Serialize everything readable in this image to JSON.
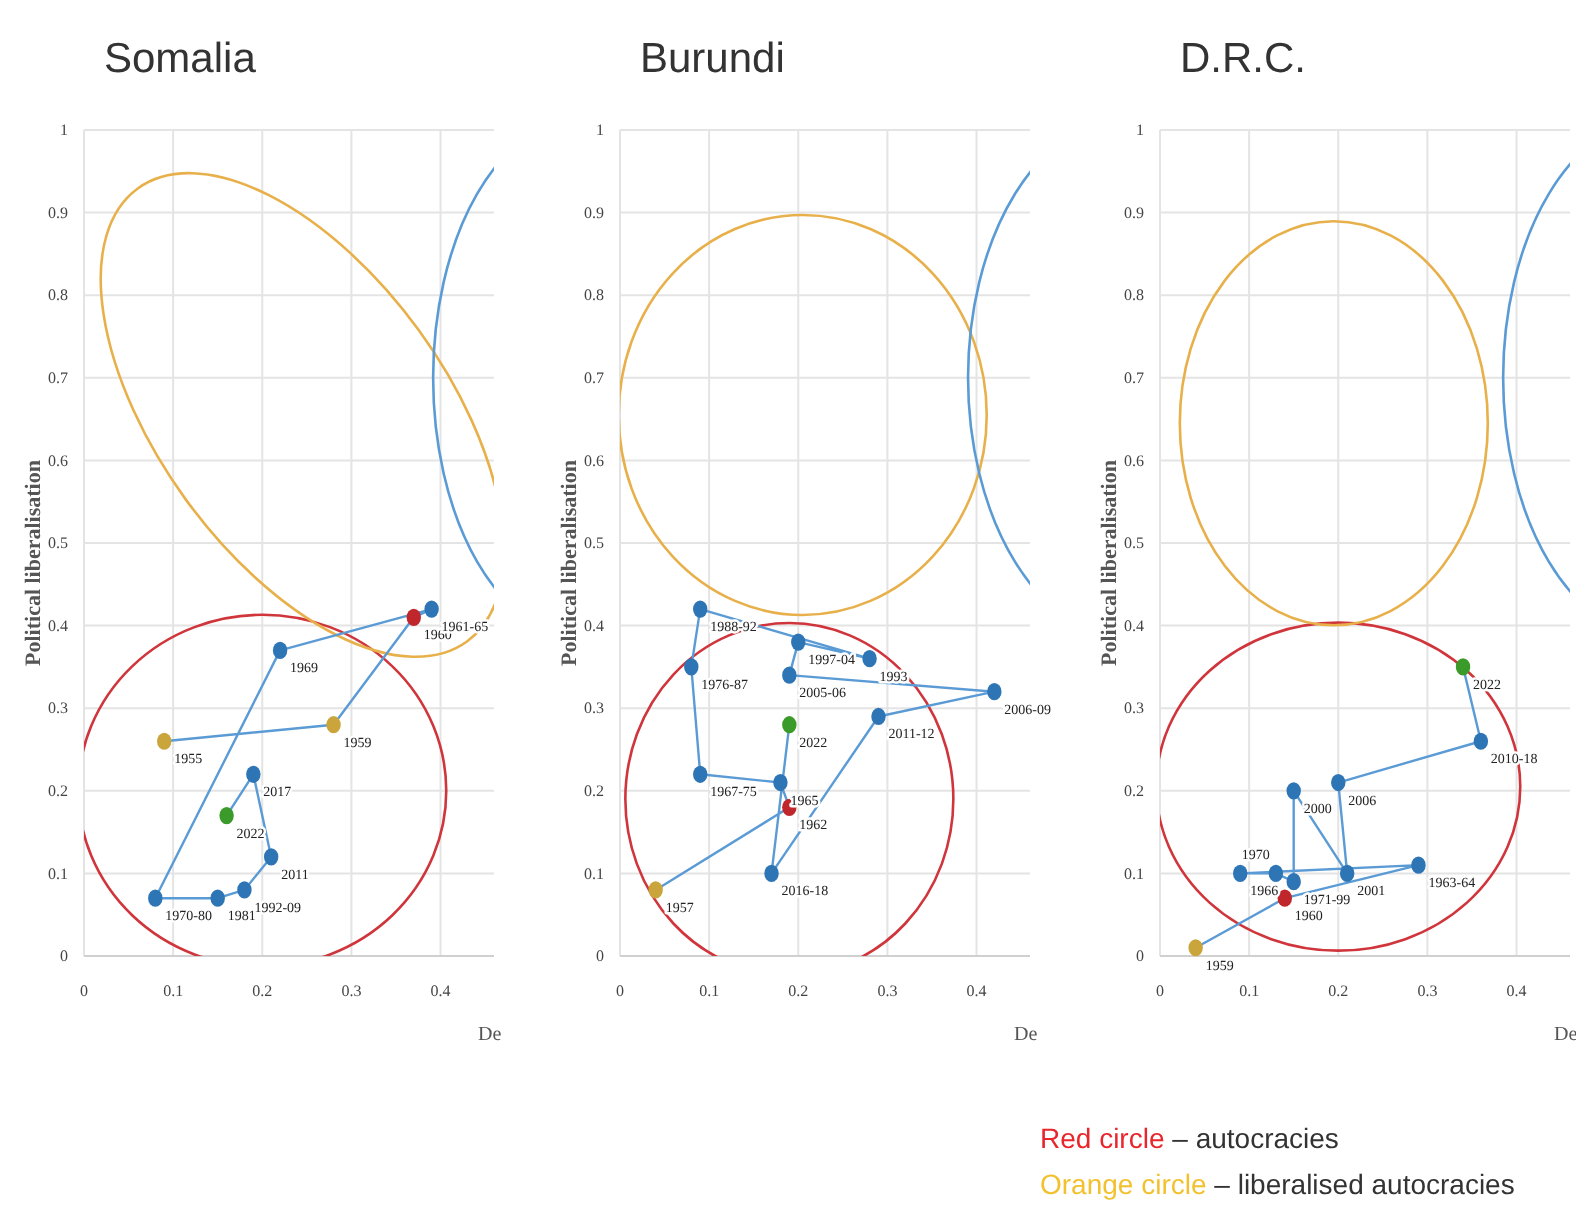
{
  "chart_data": [
    {
      "type": "scatter",
      "title": "Somalia",
      "xlabel": "De",
      "ylabel": "Political liberalisation",
      "xlim": [
        0,
        0.46
      ],
      "ylim": [
        0,
        1
      ],
      "xticks": [
        0,
        0.1,
        0.2,
        0.3,
        0.4
      ],
      "yticks": [
        0,
        0.1,
        0.2,
        0.3,
        0.4,
        0.5,
        0.6,
        0.7,
        0.8,
        0.9,
        1
      ],
      "grid": true,
      "marker": "circle",
      "series": [
        {
          "type": "line",
          "color": "#5b9bd5",
          "marker": "none",
          "x": [
            0.09,
            0.28,
            0.37,
            0.39,
            0.22,
            0.08,
            0.15,
            0.18,
            0.21,
            0.19,
            0.16
          ],
          "values": [
            0.26,
            0.28,
            0.41,
            0.42,
            0.37,
            0.07,
            0.07,
            0.08,
            0.12,
            0.22,
            0.17
          ]
        },
        {
          "type": "scatter",
          "x": [
            0.09,
            0.28,
            0.37,
            0.39,
            0.22,
            0.08,
            0.15,
            0.18,
            0.21,
            0.19,
            0.16
          ],
          "values": [
            0.26,
            0.28,
            0.41,
            0.42,
            0.37,
            0.07,
            0.07,
            0.08,
            0.12,
            0.22,
            0.17
          ],
          "colors": [
            "#c9a53c",
            "#c9a53c",
            "#c0272d",
            "#2e75b6",
            "#2e75b6",
            "#2e75b6",
            "#2e75b6",
            "#2e75b6",
            "#2e75b6",
            "#2e75b6",
            "#3a9a2a"
          ]
        }
      ],
      "annotations": [
        {
          "text": "1955",
          "x": 0.09,
          "y": 0.26
        },
        {
          "text": "1959",
          "x": 0.28,
          "y": 0.28
        },
        {
          "text": "1960",
          "x": 0.37,
          "y": 0.41
        },
        {
          "text": "1961-65",
          "x": 0.39,
          "y": 0.42
        },
        {
          "text": "1969",
          "x": 0.22,
          "y": 0.37
        },
        {
          "text": "1970-80",
          "x": 0.08,
          "y": 0.07
        },
        {
          "text": "1981",
          "x": 0.15,
          "y": 0.07
        },
        {
          "text": "1992-09",
          "x": 0.18,
          "y": 0.08
        },
        {
          "text": "2011",
          "x": 0.21,
          "y": 0.12
        },
        {
          "text": "2017",
          "x": 0.19,
          "y": 0.22
        },
        {
          "text": "2022",
          "x": 0.16,
          "y": 0.17
        }
      ]
    },
    {
      "type": "scatter",
      "title": "Burundi",
      "xlabel": "De",
      "ylabel": "Political liberalisation",
      "xlim": [
        0,
        0.46
      ],
      "ylim": [
        0,
        1
      ],
      "xticks": [
        0,
        0.1,
        0.2,
        0.3,
        0.4
      ],
      "yticks": [
        0,
        0.1,
        0.2,
        0.3,
        0.4,
        0.5,
        0.6,
        0.7,
        0.8,
        0.9,
        1
      ],
      "grid": true,
      "marker": "circle",
      "series": [
        {
          "type": "line",
          "color": "#5b9bd5",
          "marker": "none",
          "x": [
            0.04,
            0.19,
            0.18,
            0.09,
            0.08,
            0.09,
            0.28,
            0.2,
            0.19,
            0.42,
            0.29,
            0.17,
            0.19
          ],
          "values": [
            0.08,
            0.18,
            0.21,
            0.22,
            0.35,
            0.42,
            0.36,
            0.38,
            0.34,
            0.32,
            0.29,
            0.1,
            0.28
          ]
        },
        {
          "type": "scatter",
          "x": [
            0.04,
            0.19,
            0.18,
            0.09,
            0.08,
            0.09,
            0.28,
            0.2,
            0.19,
            0.42,
            0.29,
            0.17,
            0.19
          ],
          "values": [
            0.08,
            0.18,
            0.21,
            0.22,
            0.35,
            0.42,
            0.36,
            0.38,
            0.34,
            0.32,
            0.29,
            0.1,
            0.28
          ],
          "colors": [
            "#c9a53c",
            "#c0272d",
            "#2e75b6",
            "#2e75b6",
            "#2e75b6",
            "#2e75b6",
            "#2e75b6",
            "#2e75b6",
            "#2e75b6",
            "#2e75b6",
            "#2e75b6",
            "#2e75b6",
            "#3a9a2a"
          ]
        }
      ],
      "annotations": [
        {
          "text": "1957",
          "x": 0.04,
          "y": 0.08
        },
        {
          "text": "1962",
          "x": 0.19,
          "y": 0.18
        },
        {
          "text": "1965",
          "x": 0.18,
          "y": 0.21
        },
        {
          "text": "1967-75",
          "x": 0.09,
          "y": 0.22
        },
        {
          "text": "1976-87",
          "x": 0.08,
          "y": 0.35
        },
        {
          "text": "1988-92",
          "x": 0.09,
          "y": 0.42
        },
        {
          "text": "1993",
          "x": 0.28,
          "y": 0.36
        },
        {
          "text": "1997-04",
          "x": 0.2,
          "y": 0.38
        },
        {
          "text": "2005-06",
          "x": 0.19,
          "y": 0.34
        },
        {
          "text": "2006-09",
          "x": 0.42,
          "y": 0.32
        },
        {
          "text": "2011-12",
          "x": 0.29,
          "y": 0.29
        },
        {
          "text": "2016-18",
          "x": 0.17,
          "y": 0.1
        },
        {
          "text": "2022",
          "x": 0.19,
          "y": 0.28
        }
      ]
    },
    {
      "type": "scatter",
      "title": "D.R.C.",
      "xlabel": "De",
      "ylabel": "Political liberalisation",
      "xlim": [
        0,
        0.46
      ],
      "ylim": [
        0,
        1
      ],
      "xticks": [
        0,
        0.1,
        0.2,
        0.3,
        0.4
      ],
      "yticks": [
        0,
        0.1,
        0.2,
        0.3,
        0.4,
        0.5,
        0.6,
        0.7,
        0.8,
        0.9,
        1
      ],
      "grid": true,
      "marker": "circle",
      "series": [
        {
          "type": "line",
          "color": "#5b9bd5",
          "marker": "none",
          "x": [
            0.04,
            0.14,
            0.29,
            0.09,
            0.13,
            0.15,
            0.15,
            0.21,
            0.2,
            0.36,
            0.34
          ],
          "values": [
            0.01,
            0.07,
            0.11,
            0.1,
            0.1,
            0.09,
            0.2,
            0.1,
            0.21,
            0.26,
            0.35
          ]
        },
        {
          "type": "scatter",
          "x": [
            0.04,
            0.14,
            0.29,
            0.09,
            0.13,
            0.15,
            0.15,
            0.21,
            0.2,
            0.36,
            0.34
          ],
          "values": [
            0.01,
            0.07,
            0.11,
            0.1,
            0.1,
            0.09,
            0.2,
            0.1,
            0.21,
            0.26,
            0.35
          ],
          "colors": [
            "#c9a53c",
            "#c0272d",
            "#2e75b6",
            "#2e75b6",
            "#2e75b6",
            "#2e75b6",
            "#2e75b6",
            "#2e75b6",
            "#2e75b6",
            "#2e75b6",
            "#3a9a2a"
          ]
        }
      ],
      "annotations": [
        {
          "text": "1959",
          "x": 0.04,
          "y": 0.01
        },
        {
          "text": "1960",
          "x": 0.14,
          "y": 0.07
        },
        {
          "text": "1963-64",
          "x": 0.29,
          "y": 0.11
        },
        {
          "text": "1966",
          "x": 0.09,
          "y": 0.1
        },
        {
          "text": "1970",
          "x": 0.13,
          "y": 0.1
        },
        {
          "text": "1971-99",
          "x": 0.15,
          "y": 0.09
        },
        {
          "text": "2000",
          "x": 0.15,
          "y": 0.2
        },
        {
          "text": "2001",
          "x": 0.21,
          "y": 0.1
        },
        {
          "text": "2006",
          "x": 0.2,
          "y": 0.21
        },
        {
          "text": "2010-18",
          "x": 0.36,
          "y": 0.26
        },
        {
          "text": "2022",
          "x": 0.34,
          "y": 0.35
        },
        "Red circle – autocracies",
        "Orange circle – liberalised autocracies"
      ]
    }
  ]
}
